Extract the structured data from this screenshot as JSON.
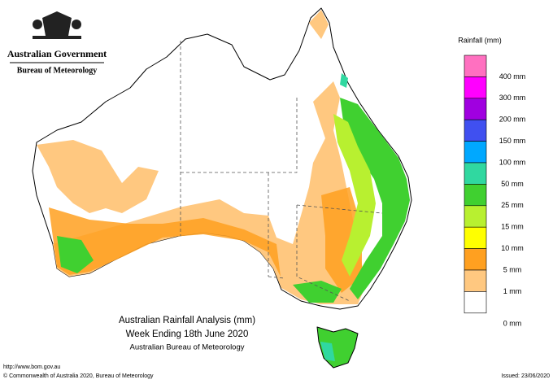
{
  "header": {
    "government": "Australian Government",
    "agency": "Bureau of Meteorology"
  },
  "legend": {
    "title": "Rainfall (mm)",
    "colors": [
      "#ff70c0",
      "#ff00ff",
      "#a000e0",
      "#4050f0",
      "#00a8ff",
      "#30d8a0",
      "#40d030",
      "#b8f030",
      "#ffff00",
      "#ffa020",
      "#ffc880",
      "#ffffff"
    ],
    "labels": [
      "400 mm",
      "300 mm",
      "200 mm",
      "150 mm",
      "100 mm",
      "50 mm",
      "25 mm",
      "15 mm",
      "10 mm",
      "5 mm",
      "1 mm",
      "0 mm"
    ]
  },
  "map": {
    "title": "Australian Rainfall Analysis (mm)",
    "subtitle": "Week Ending 18th June 2020",
    "source": "Australian Bureau of Meteorology"
  },
  "footer": {
    "url": "http://www.bom.gov.au",
    "copyright": "© Commonwealth of Australia 2020, Bureau of Meteorology",
    "issued": "Issued: 23/06/2020"
  }
}
